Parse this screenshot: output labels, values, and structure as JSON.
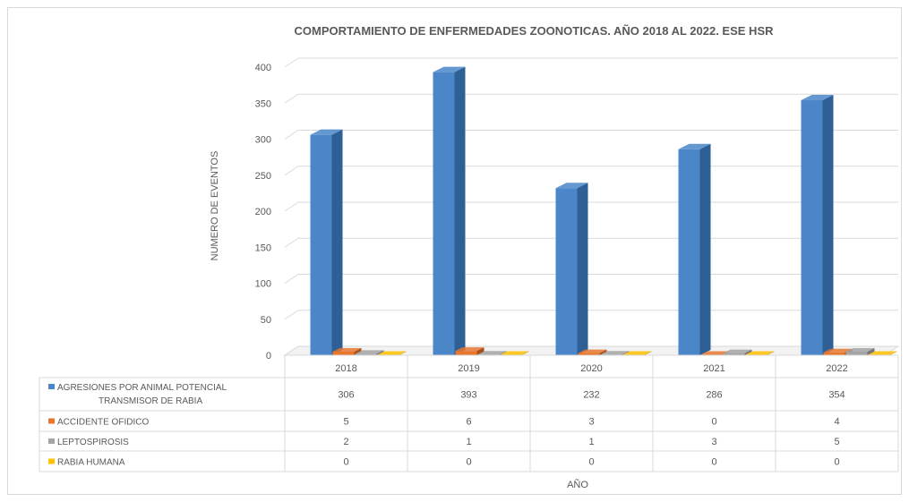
{
  "chart_data": {
    "type": "bar",
    "title": "COMPORTAMIENTO DE  ENFERMEDADES ZOONOTICAS. AÑO 2018 AL 2022. ESE HSR",
    "xlabel": "AÑO",
    "ylabel": "NUMERO DE EVENTOS",
    "categories": [
      "2018",
      "2019",
      "2020",
      "2021",
      "2022"
    ],
    "ylim": [
      0,
      400
    ],
    "yticks": [
      "0",
      "50",
      "100",
      "150",
      "200",
      "250",
      "300",
      "350",
      "400"
    ],
    "grid": true,
    "legend": "data-table",
    "series": [
      {
        "name": "AGRESIONES POR ANIMAL POTENCIAL TRANSMISOR DE RABIA",
        "name_lines": [
          "AGRESIONES POR ANIMAL POTENCIAL",
          "TRANSMISOR DE RABIA"
        ],
        "color": "#4a86c8",
        "side_color": "#2e5f95",
        "values": [
          306,
          393,
          232,
          286,
          354
        ]
      },
      {
        "name": "ACCIDENTE OFIDICO",
        "name_lines": [
          "ACCIDENTE OFIDICO"
        ],
        "color": "#e8772e",
        "side_color": "#a9501a",
        "values": [
          5,
          6,
          3,
          0,
          4
        ]
      },
      {
        "name": "LEPTOSPIROSIS",
        "name_lines": [
          "LEPTOSPIROSIS"
        ],
        "color": "#a5a5a5",
        "side_color": "#767676",
        "values": [
          2,
          1,
          1,
          3,
          5
        ]
      },
      {
        "name": "RABIA HUMANA",
        "name_lines": [
          "RABIA HUMANA"
        ],
        "color": "#ffc000",
        "side_color": "#b88a00",
        "values": [
          0,
          0,
          0,
          0,
          0
        ]
      }
    ]
  }
}
